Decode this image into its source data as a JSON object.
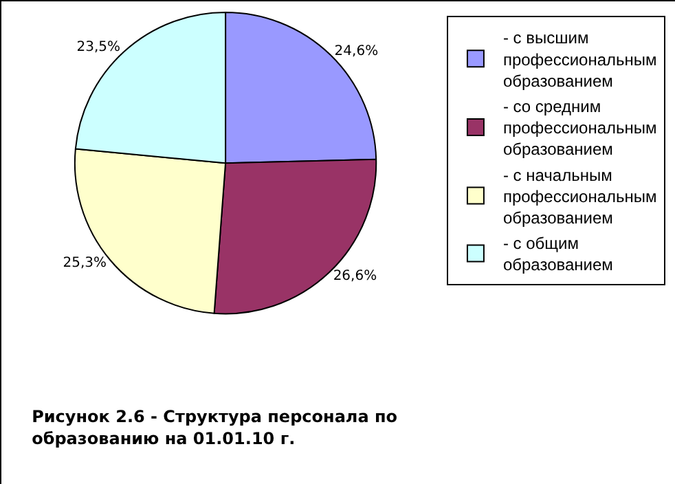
{
  "chart_data": {
    "type": "pie",
    "title": "Рисунок 2.6 - Структура персонала по образованию на 01.01.10 г.",
    "categories": [
      "- с высшим профессиональным образованием",
      "- со средним профессиональным образованием",
      "- с начальным профессиональным образованием",
      "- с общим образованием"
    ],
    "values": [
      24.6,
      26.6,
      25.3,
      23.5
    ],
    "value_labels": [
      "24,6%",
      "26,6%",
      "25,3%",
      "23,5%"
    ],
    "colors": [
      "#9999ff",
      "#993366",
      "#ffffcc",
      "#ccffff"
    ],
    "legend": "right"
  }
}
